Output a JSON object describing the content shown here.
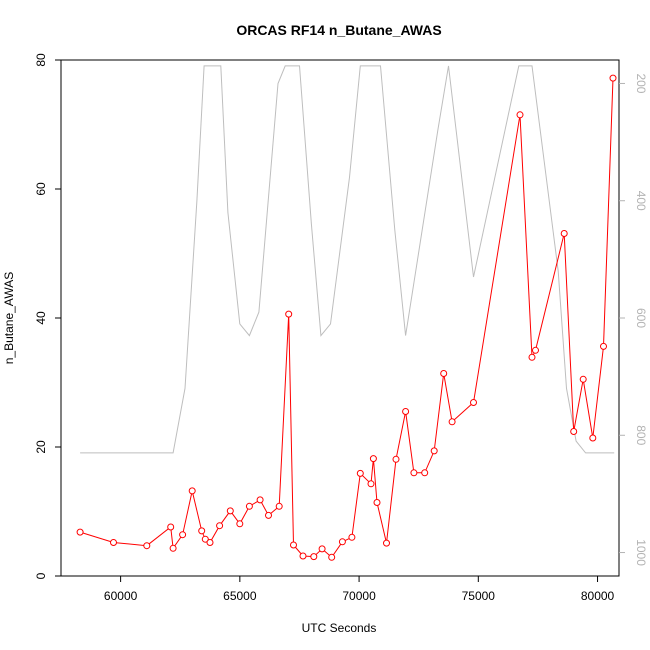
{
  "chart_data": {
    "type": "line",
    "title": "ORCAS RF14 n_Butane_AWAS",
    "xlabel": "UTC Seconds",
    "ylabel": "n_Butane_AWAS",
    "xlim": [
      57500,
      80900
    ],
    "ylim": [
      0,
      80
    ],
    "x_ticks": [
      "60000",
      "65000",
      "70000",
      "75000",
      "80000"
    ],
    "y_ticks": [
      "0",
      "20",
      "40",
      "60",
      "80"
    ],
    "y2_ticks": [
      "200",
      "400",
      "600",
      "800",
      "1000"
    ],
    "y2lim": [
      160,
      1040
    ],
    "series": [
      {
        "color": "#ff0000",
        "markers": "open-circle",
        "axis": "left",
        "x": [
          58300,
          59700,
          61100,
          62100,
          62200,
          62600,
          63000,
          63400,
          63550,
          63750,
          64150,
          64600,
          65000,
          65400,
          65850,
          66200,
          66650,
          67050,
          67250,
          67650,
          68100,
          68450,
          68850,
          69300,
          69700,
          70050,
          70500,
          70600,
          70750,
          71150,
          71550,
          71950,
          72300,
          72750,
          73150,
          73550,
          73900,
          74800,
          76750,
          77250,
          77400,
          78600,
          79000,
          79400,
          79800,
          80250,
          80650
        ],
        "y": [
          6.8,
          5.2,
          4.7,
          7.6,
          4.3,
          6.4,
          13.2,
          7.0,
          5.7,
          5.2,
          7.8,
          10.1,
          8.1,
          10.8,
          11.8,
          9.4,
          10.8,
          40.6,
          4.8,
          3.1,
          3.0,
          4.2,
          2.9,
          5.3,
          6.0,
          15.9,
          14.3,
          18.2,
          11.4,
          5.1,
          18.1,
          25.5,
          16.0,
          16.0,
          19.4,
          31.4,
          23.9,
          26.9,
          71.5,
          33.9,
          35.0,
          53.1,
          22.4,
          30.5,
          21.4,
          35.6,
          77.2
        ]
      },
      {
        "color": "#bebebe",
        "markers": "none",
        "axis": "right",
        "x": [
          58300,
          62200,
          62700,
          63200,
          63500,
          64200,
          64500,
          65000,
          65400,
          65800,
          66600,
          66900,
          67500,
          68000,
          68400,
          68800,
          69600,
          70050,
          70900,
          71500,
          71950,
          72300,
          73300,
          73750,
          74800,
          76700,
          77250,
          78350,
          78700,
          79100,
          79500,
          80700
        ],
        "y": [
          830,
          830,
          720,
          400,
          170,
          170,
          420,
          610,
          630,
          590,
          200,
          170,
          170,
          440,
          630,
          610,
          360,
          170,
          170,
          450,
          630,
          540,
          280,
          170,
          530,
          170,
          170,
          520,
          720,
          810,
          830,
          830
        ]
      }
    ]
  }
}
